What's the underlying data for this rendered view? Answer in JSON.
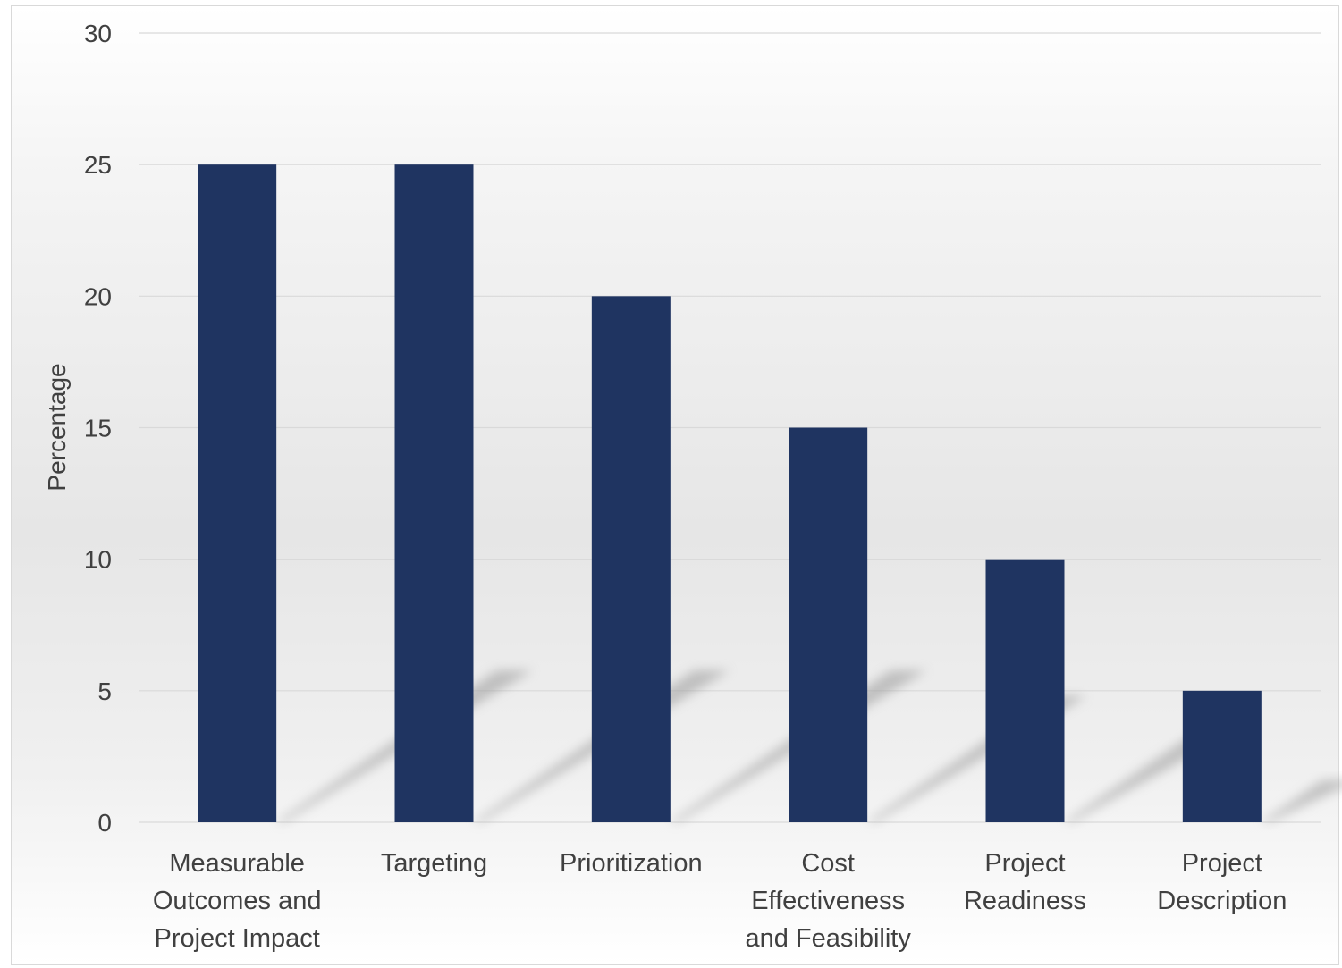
{
  "chart_data": {
    "type": "bar",
    "title": "",
    "xlabel": "",
    "ylabel": "Percentage",
    "categories": [
      [
        "Measurable",
        "Outcomes and",
        "Project Impact"
      ],
      [
        "Targeting"
      ],
      [
        "Prioritization"
      ],
      [
        "Cost",
        "Effectiveness",
        "and Feasibility"
      ],
      [
        "Project",
        "Readiness"
      ],
      [
        "Project",
        "Description"
      ]
    ],
    "values": [
      25,
      25,
      20,
      15,
      10,
      5
    ],
    "ylim": [
      0,
      30
    ],
    "yticks": [
      0,
      5,
      10,
      15,
      20,
      25,
      30
    ],
    "grid": true,
    "legend": "none",
    "colors": {
      "bar": "#1f3461",
      "grid": "#d9d9d9",
      "text": "#404040",
      "shadow": "#9a9a9a"
    }
  }
}
